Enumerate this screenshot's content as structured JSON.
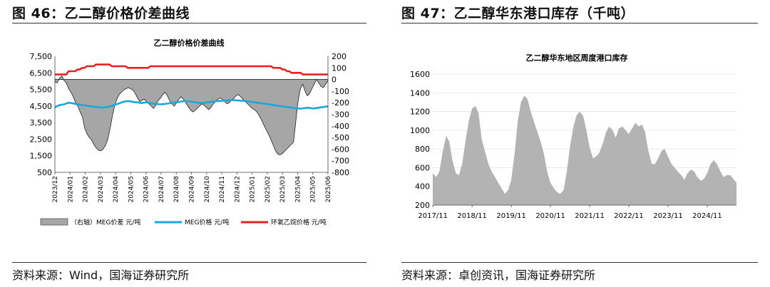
{
  "figures": [
    {
      "title": "图 46：乙二醇价格价差曲线",
      "source": "资料来源：Wind，国海证券研究所"
    },
    {
      "title": "图 47：乙二醇华东港口库存（千吨）",
      "source": "资料来源：卓创资讯，国海证券研究所"
    }
  ],
  "chart_data": [
    {
      "type": "line",
      "title": "乙二醇价格价差曲线",
      "x_tick_labels": [
        "2023/12",
        "2024/01",
        "2024/02",
        "2024/03",
        "2024/04",
        "2024/05",
        "2024/06",
        "2024/07",
        "2024/08",
        "2024/09",
        "2024/10",
        "2024/11",
        "2024/12",
        "2025/01",
        "2025/02",
        "2025/03",
        "2025/04",
        "2025/05",
        "2025/06"
      ],
      "y_left": {
        "ylim": [
          500,
          7500
        ],
        "ticks": [
          "7,500",
          "6,500",
          "5,500",
          "4,500",
          "3,500",
          "2,500",
          "1,500",
          "500"
        ]
      },
      "y_right": {
        "ylim": [
          -800,
          200
        ],
        "ticks": [
          "200",
          "100",
          "0",
          "-100",
          "-200",
          "-300",
          "-400",
          "-500",
          "-600",
          "-700",
          "-800"
        ]
      },
      "colors": {
        "spread": "#a6a6a6",
        "meg": "#1ba6dc",
        "eo": "#e02424"
      },
      "series": [
        {
          "name": "（右轴）MEG价差  元/吨",
          "type": "area",
          "axis": "right",
          "values": [
            -20,
            -30,
            10,
            30,
            -10,
            -30,
            -80,
            -110,
            -150,
            -200,
            -230,
            -280,
            -320,
            -420,
            -470,
            -500,
            -520,
            -560,
            -590,
            -610,
            -615,
            -600,
            -570,
            -520,
            -430,
            -320,
            -230,
            -170,
            -130,
            -110,
            -90,
            -80,
            -70,
            -80,
            -90,
            -120,
            -160,
            -190,
            -180,
            -170,
            -190,
            -210,
            -230,
            -250,
            -220,
            -180,
            -160,
            -130,
            -110,
            -140,
            -180,
            -210,
            -230,
            -200,
            -170,
            -150,
            -170,
            -200,
            -230,
            -260,
            -280,
            -270,
            -250,
            -230,
            -210,
            -220,
            -240,
            -260,
            -240,
            -210,
            -190,
            -170,
            -160,
            -170,
            -190,
            -210,
            -200,
            -180,
            -160,
            -140,
            -130,
            -150,
            -170,
            -190,
            -210,
            -230,
            -250,
            -260,
            -280,
            -310,
            -350,
            -390,
            -430,
            -470,
            -510,
            -560,
            -610,
            -640,
            -650,
            -640,
            -620,
            -600,
            -580,
            -560,
            -540,
            -360,
            -180,
            -80,
            -40,
            -100,
            -140,
            -120,
            -80,
            -40,
            0,
            -30,
            -60,
            -70,
            -40,
            -10
          ]
        },
        {
          "name": "MEG价格  元/吨",
          "type": "line",
          "axis": "left",
          "values": [
            4400,
            4500,
            4550,
            4580,
            4600,
            4650,
            4700,
            4680,
            4660,
            4620,
            4600,
            4580,
            4560,
            4540,
            4520,
            4500,
            4480,
            4460,
            4440,
            4430,
            4420,
            4400,
            4420,
            4440,
            4460,
            4500,
            4550,
            4600,
            4650,
            4700,
            4750,
            4780,
            4800,
            4780,
            4760,
            4740,
            4720,
            4700,
            4680,
            4700,
            4720,
            4700,
            4680,
            4660,
            4640,
            4620,
            4600,
            4610,
            4620,
            4640,
            4660,
            4680,
            4700,
            4720,
            4740,
            4760,
            4780,
            4800,
            4790,
            4780,
            4760,
            4740,
            4720,
            4700,
            4690,
            4680,
            4700,
            4720,
            4740,
            4760,
            4780,
            4790,
            4800,
            4810,
            4820,
            4830,
            4840,
            4850,
            4860,
            4850,
            4840,
            4830,
            4820,
            4810,
            4800,
            4780,
            4760,
            4740,
            4720,
            4700,
            4680,
            4660,
            4640,
            4620,
            4600,
            4580,
            4560,
            4540,
            4520,
            4500,
            4480,
            4460,
            4440,
            4420,
            4400,
            4380,
            4360,
            4350,
            4340,
            4360,
            4380,
            4400,
            4380,
            4360,
            4350,
            4380,
            4400,
            4420,
            4440,
            4460,
            4480
          ]
        },
        {
          "name": "环氧乙烷价格  元/吨",
          "type": "line",
          "axis": "left",
          "values": [
            6400,
            6400,
            6400,
            6400,
            6400,
            6400,
            6600,
            6600,
            6600,
            6600,
            6700,
            6700,
            6800,
            6800,
            6900,
            6900,
            6900,
            6900,
            7000,
            7000,
            7000,
            7000,
            7000,
            7000,
            7000,
            6900,
            6900,
            6900,
            6900,
            6900,
            6900,
            6900,
            6800,
            6800,
            6800,
            6800,
            6800,
            6800,
            6800,
            6800,
            6800,
            6800,
            6900,
            6900,
            6900,
            6900,
            6900,
            6900,
            6900,
            6900,
            6900,
            6900,
            6900,
            6900,
            6900,
            6900,
            6900,
            6900,
            6900,
            6900,
            6900,
            6900,
            6900,
            6900,
            6900,
            6900,
            6900,
            6900,
            6900,
            6900,
            6900,
            6900,
            6900,
            6900,
            6900,
            6900,
            6900,
            6900,
            6900,
            6900,
            6900,
            6900,
            6900,
            6900,
            6900,
            6900,
            6900,
            6900,
            6900,
            6900,
            6900,
            6900,
            6900,
            6900,
            6900,
            6900,
            6800,
            6800,
            6800,
            6800,
            6700,
            6700,
            6600,
            6600,
            6500,
            6500,
            6500,
            6500,
            6500,
            6400,
            6400,
            6400,
            6400,
            6400,
            6400,
            6400,
            6400,
            6400,
            6400,
            6400,
            6400
          ]
        }
      ]
    },
    {
      "type": "area",
      "title": "乙二醇华东地区周度港口库存",
      "x_tick_labels": [
        "2017/11",
        "2018/11",
        "2019/11",
        "2020/11",
        "2021/11",
        "2022/11",
        "2023/11",
        "2024/11"
      ],
      "x_range": [
        2017.83,
        2025.58
      ],
      "ylim": [
        200,
        1600
      ],
      "y_ticks": [
        "1600",
        "1400",
        "1200",
        "1000",
        "800",
        "600",
        "400",
        "200"
      ],
      "colors": {
        "area": "#b3b3b3"
      },
      "series": [
        {
          "name": "港口库存",
          "x": [
            2017.83,
            2017.92,
            2018.0,
            2018.08,
            2018.17,
            2018.25,
            2018.33,
            2018.42,
            2018.5,
            2018.58,
            2018.67,
            2018.75,
            2018.83,
            2018.92,
            2019.0,
            2019.08,
            2019.17,
            2019.25,
            2019.33,
            2019.42,
            2019.5,
            2019.58,
            2019.67,
            2019.75,
            2019.83,
            2019.92,
            2020.0,
            2020.08,
            2020.17,
            2020.25,
            2020.33,
            2020.42,
            2020.5,
            2020.58,
            2020.67,
            2020.75,
            2020.83,
            2020.92,
            2021.0,
            2021.08,
            2021.17,
            2021.25,
            2021.33,
            2021.42,
            2021.5,
            2021.58,
            2021.67,
            2021.75,
            2021.83,
            2021.92,
            2022.0,
            2022.08,
            2022.17,
            2022.25,
            2022.33,
            2022.42,
            2022.5,
            2022.58,
            2022.67,
            2022.75,
            2022.83,
            2022.92,
            2023.0,
            2023.08,
            2023.17,
            2023.25,
            2023.33,
            2023.42,
            2023.5,
            2023.58,
            2023.67,
            2023.75,
            2023.83,
            2023.92,
            2024.0,
            2024.08,
            2024.17,
            2024.25,
            2024.33,
            2024.42,
            2024.5,
            2024.58,
            2024.67,
            2024.75,
            2024.83,
            2024.92,
            2025.0,
            2025.08,
            2025.17,
            2025.25,
            2025.33,
            2025.42,
            2025.5,
            2025.58
          ],
          "values": [
            540,
            500,
            560,
            760,
            940,
            880,
            680,
            540,
            520,
            640,
            900,
            1100,
            1230,
            1260,
            1180,
            900,
            760,
            640,
            560,
            500,
            440,
            380,
            320,
            360,
            460,
            760,
            1100,
            1300,
            1370,
            1330,
            1200,
            1080,
            980,
            880,
            740,
            560,
            440,
            380,
            340,
            320,
            360,
            560,
            820,
            1040,
            1160,
            1200,
            1150,
            1000,
            820,
            700,
            720,
            760,
            860,
            980,
            1040,
            1000,
            920,
            1020,
            1040,
            1000,
            960,
            1020,
            1080,
            1040,
            1060,
            980,
            780,
            640,
            640,
            700,
            780,
            800,
            720,
            640,
            600,
            560,
            520,
            470,
            540,
            580,
            560,
            500,
            460,
            480,
            540,
            640,
            680,
            640,
            560,
            500,
            520,
            520,
            480,
            440
          ]
        }
      ]
    }
  ]
}
